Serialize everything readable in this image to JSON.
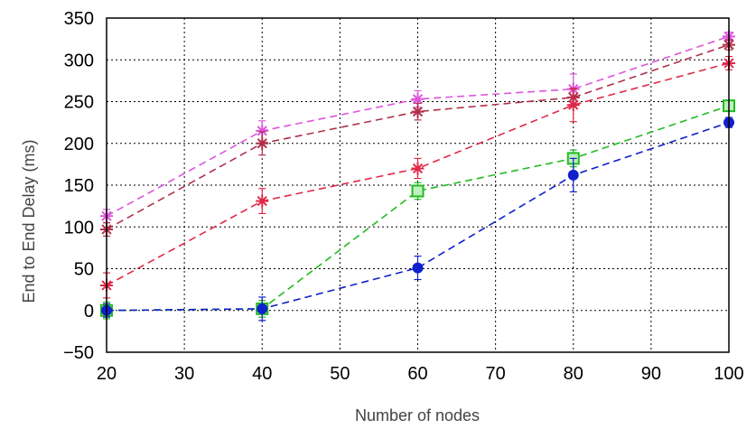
{
  "chart_data": {
    "type": "line",
    "title": "",
    "xlabel": "Number of nodes",
    "ylabel": "End to End Delay (ms)",
    "xlim": [
      20,
      100
    ],
    "ylim": [
      -50,
      350
    ],
    "grid": true,
    "legend": "none",
    "x": [
      20,
      40,
      60,
      80,
      100
    ],
    "x_ticks": [
      "20",
      "30",
      "40",
      "50",
      "60",
      "70",
      "80",
      "90",
      "100"
    ],
    "y_ticks": [
      "350",
      "300",
      "250",
      "200",
      "150",
      "100",
      "50",
      "0",
      "−50"
    ],
    "series": [
      {
        "color": "#dd55dd",
        "marker": "star",
        "values": [
          113,
          215,
          253,
          265,
          328
        ],
        "errors": [
          8,
          12,
          10,
          18,
          5
        ]
      },
      {
        "color": "#b0304a",
        "marker": "star",
        "values": [
          97,
          200,
          238,
          255,
          318
        ],
        "errors": [
          8,
          14,
          10,
          10,
          6
        ]
      },
      {
        "color": "#e02848",
        "marker": "star",
        "values": [
          30,
          131,
          170,
          246,
          296
        ],
        "errors": [
          15,
          15,
          12,
          20,
          8
        ]
      },
      {
        "color": "#22bb22",
        "marker": "square",
        "values": [
          0,
          2,
          143,
          182,
          245
        ],
        "errors": [
          10,
          10,
          10,
          10,
          6
        ]
      },
      {
        "color": "#1020cc",
        "marker": "circle",
        "values": [
          0,
          2,
          51,
          162,
          225
        ],
        "errors": [
          8,
          14,
          14,
          20,
          6
        ]
      }
    ]
  }
}
